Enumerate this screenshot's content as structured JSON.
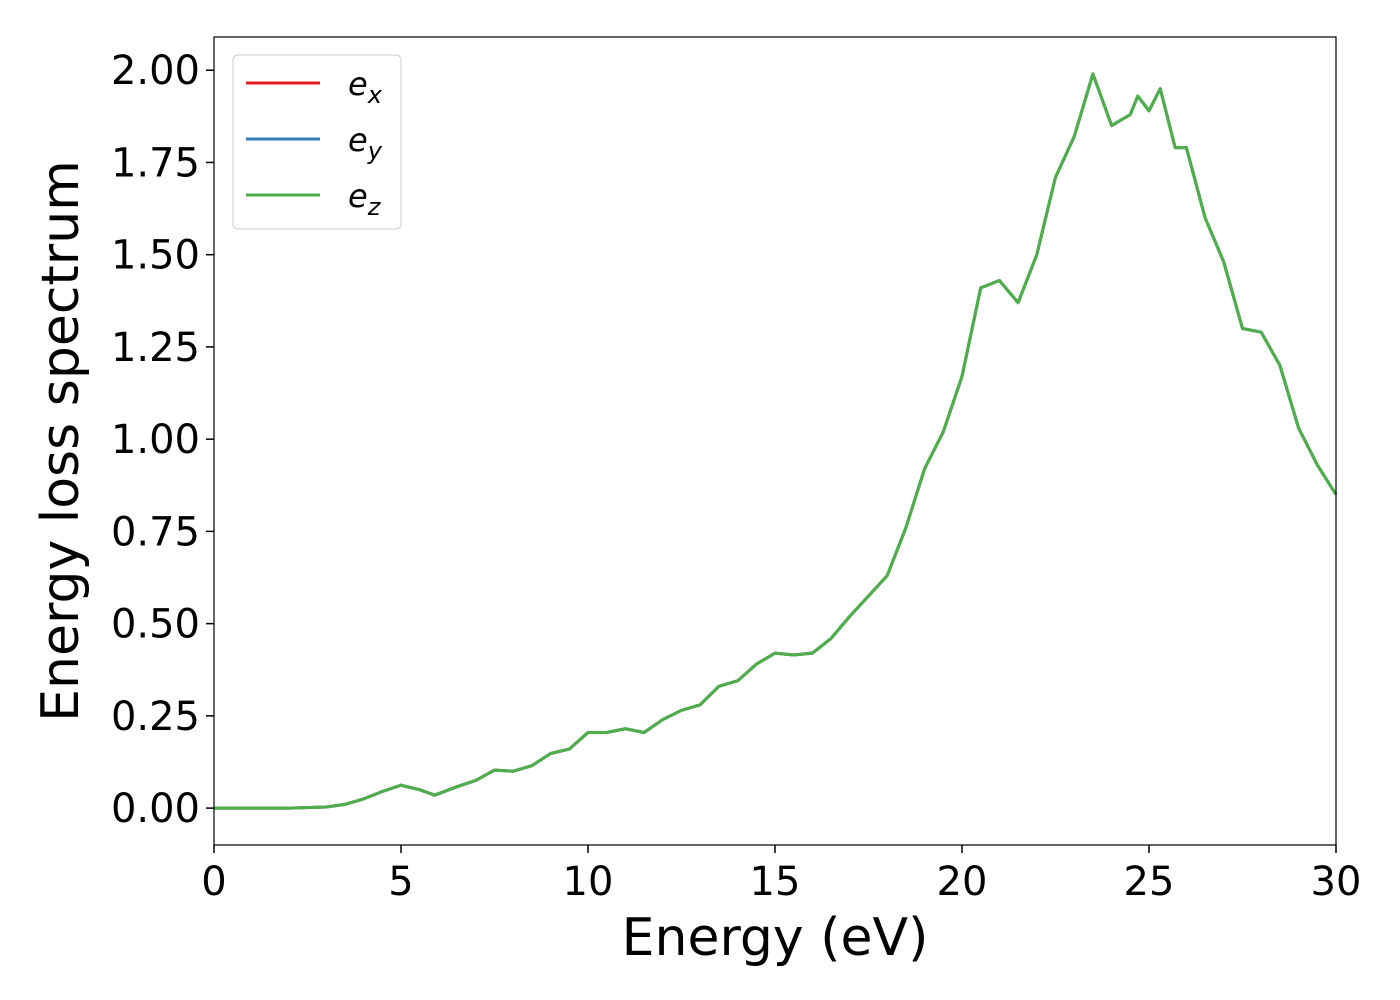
{
  "chart_data": {
    "type": "line",
    "xlabel": "Energy (eV)",
    "ylabel": "Energy loss spectrum",
    "x": [
      0,
      1,
      2,
      3,
      3.5,
      4,
      4.5,
      5,
      5.5,
      5.9,
      6.5,
      7,
      7.5,
      8,
      8.5,
      9,
      9.5,
      10,
      10.5,
      11,
      11.5,
      12,
      12.5,
      13,
      13.5,
      14,
      14.5,
      15,
      15.5,
      16,
      16.5,
      17,
      17.5,
      18,
      18.5,
      19,
      19.5,
      20,
      20.5,
      21,
      21.5,
      22,
      22.5,
      23,
      23.5,
      24,
      24.5,
      24.7,
      25,
      25.3,
      25.7,
      26,
      26.5,
      27,
      27.5,
      28,
      28.5,
      29,
      29.5,
      30
    ],
    "series": [
      {
        "name": "e_x",
        "color": "#e41a1c",
        "values": [
          0,
          0,
          0,
          0.003,
          0.01,
          0.025,
          0.045,
          0.062,
          0.05,
          0.035,
          0.058,
          0.075,
          0.103,
          0.1,
          0.115,
          0.148,
          0.16,
          0.205,
          0.205,
          0.215,
          0.205,
          0.24,
          0.265,
          0.28,
          0.33,
          0.345,
          0.39,
          0.42,
          0.415,
          0.42,
          0.46,
          0.52,
          0.575,
          0.63,
          0.76,
          0.92,
          1.02,
          1.17,
          1.41,
          1.43,
          1.37,
          1.5,
          1.71,
          1.82,
          1.99,
          1.85,
          1.88,
          1.93,
          1.89,
          1.95,
          1.79,
          1.79,
          1.6,
          1.48,
          1.3,
          1.29,
          1.2,
          1.03,
          0.93,
          0.85
        ]
      },
      {
        "name": "e_y",
        "color": "#377eb8",
        "values": [
          0,
          0,
          0,
          0.003,
          0.01,
          0.025,
          0.045,
          0.062,
          0.05,
          0.035,
          0.058,
          0.075,
          0.103,
          0.1,
          0.115,
          0.148,
          0.16,
          0.205,
          0.205,
          0.215,
          0.205,
          0.24,
          0.265,
          0.28,
          0.33,
          0.345,
          0.39,
          0.42,
          0.415,
          0.42,
          0.46,
          0.52,
          0.575,
          0.63,
          0.76,
          0.92,
          1.02,
          1.17,
          1.41,
          1.43,
          1.37,
          1.5,
          1.71,
          1.82,
          1.99,
          1.85,
          1.88,
          1.93,
          1.89,
          1.95,
          1.79,
          1.79,
          1.6,
          1.48,
          1.3,
          1.29,
          1.2,
          1.03,
          0.93,
          0.85
        ]
      },
      {
        "name": "e_z",
        "color": "#4daf4a",
        "values": [
          0,
          0,
          0,
          0.003,
          0.01,
          0.025,
          0.045,
          0.062,
          0.05,
          0.035,
          0.058,
          0.075,
          0.103,
          0.1,
          0.115,
          0.148,
          0.16,
          0.205,
          0.205,
          0.215,
          0.205,
          0.24,
          0.265,
          0.28,
          0.33,
          0.345,
          0.39,
          0.42,
          0.415,
          0.42,
          0.46,
          0.52,
          0.575,
          0.63,
          0.76,
          0.92,
          1.02,
          1.17,
          1.41,
          1.43,
          1.37,
          1.5,
          1.71,
          1.82,
          1.99,
          1.85,
          1.88,
          1.93,
          1.89,
          1.95,
          1.79,
          1.79,
          1.6,
          1.48,
          1.3,
          1.29,
          1.2,
          1.03,
          0.93,
          0.85
        ]
      }
    ],
    "xlim": [
      0,
      30
    ],
    "xticks": [
      0,
      5,
      10,
      15,
      20,
      25,
      30
    ],
    "ylim": [
      -0.1,
      2.09
    ],
    "yticks": [
      {
        "value": 0,
        "label": "0.00"
      },
      0.25,
      {
        "value": 0.5,
        "label": "0.50"
      },
      0.75,
      {
        "value": 1,
        "label": "1.00"
      },
      1.25,
      {
        "value": 1.5,
        "label": "1.50"
      },
      1.75,
      {
        "value": 2,
        "label": "2.00"
      }
    ],
    "grid": false,
    "legend": "upper left"
  }
}
